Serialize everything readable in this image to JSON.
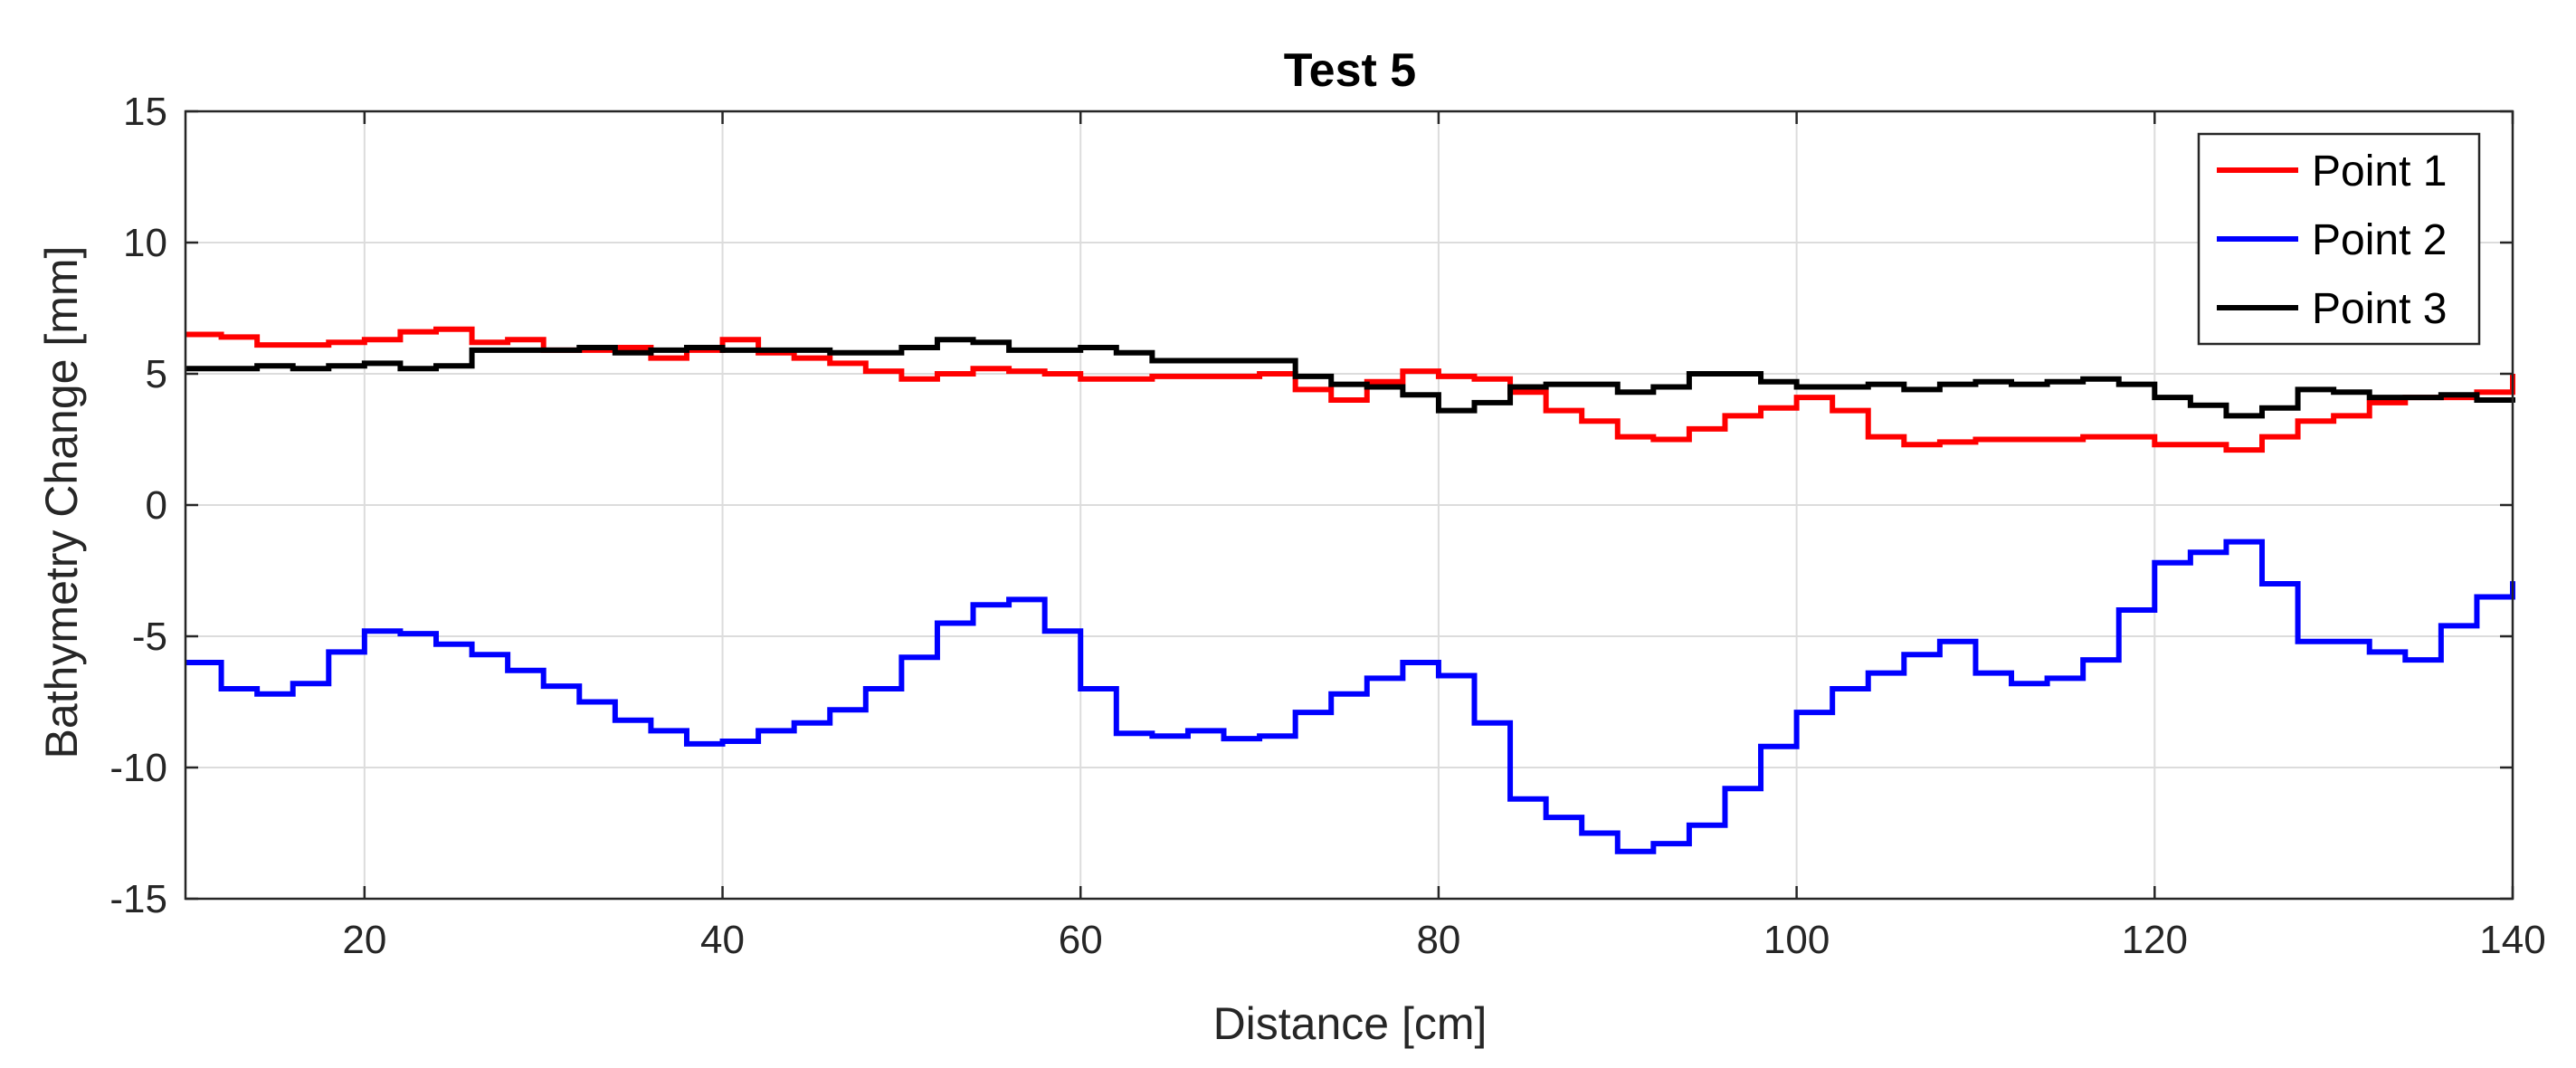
{
  "chart_data": {
    "type": "line",
    "title": "Test 5",
    "xlabel": "Distance [cm]",
    "ylabel": "Bathymetry Change [mm]",
    "xlim": [
      10,
      140
    ],
    "ylim": [
      -15,
      15
    ],
    "xticks": [
      20,
      40,
      60,
      80,
      100,
      120,
      140
    ],
    "yticks": [
      15,
      10,
      5,
      0,
      -5,
      -10,
      -15
    ],
    "grid": true,
    "legend_position": "top-right",
    "x": [
      10,
      12,
      14,
      16,
      18,
      20,
      22,
      24,
      26,
      28,
      30,
      32,
      34,
      36,
      38,
      40,
      42,
      44,
      46,
      48,
      50,
      52,
      54,
      56,
      58,
      60,
      62,
      64,
      66,
      68,
      70,
      72,
      74,
      76,
      78,
      80,
      82,
      84,
      86,
      88,
      90,
      92,
      94,
      96,
      98,
      100,
      102,
      104,
      106,
      108,
      110,
      112,
      114,
      116,
      118,
      120,
      122,
      124,
      126,
      128,
      130,
      132,
      134,
      136,
      138,
      140
    ],
    "series": [
      {
        "name": "Point 1",
        "color": "#ff0000",
        "values": [
          6.5,
          6.4,
          6.1,
          6.1,
          6.2,
          6.3,
          6.6,
          6.7,
          6.2,
          6.3,
          5.9,
          5.9,
          6.0,
          5.6,
          5.9,
          6.3,
          5.8,
          5.6,
          5.4,
          5.1,
          4.8,
          5.0,
          5.2,
          5.1,
          5.0,
          4.8,
          4.8,
          4.9,
          4.9,
          4.9,
          5.0,
          4.4,
          4.0,
          4.7,
          5.1,
          4.9,
          4.8,
          4.3,
          3.6,
          3.2,
          2.6,
          2.5,
          2.9,
          3.4,
          3.7,
          4.1,
          3.6,
          2.6,
          2.3,
          2.4,
          2.5,
          2.5,
          2.5,
          2.6,
          2.6,
          2.3,
          2.3,
          2.1,
          2.6,
          3.2,
          3.4,
          3.9,
          4.1,
          4.1,
          4.3,
          5.0
        ]
      },
      {
        "name": "Point 2",
        "color": "#0000ff",
        "values": [
          -6.0,
          -7.0,
          -7.2,
          -6.8,
          -5.6,
          -4.8,
          -4.9,
          -5.3,
          -5.7,
          -6.3,
          -6.9,
          -7.5,
          -8.2,
          -8.6,
          -9.1,
          -9.0,
          -8.6,
          -8.3,
          -7.8,
          -7.0,
          -5.8,
          -4.5,
          -3.8,
          -3.6,
          -4.8,
          -7.0,
          -8.7,
          -8.8,
          -8.6,
          -8.9,
          -8.8,
          -7.9,
          -7.2,
          -6.6,
          -6.0,
          -6.5,
          -8.3,
          -11.2,
          -11.9,
          -12.5,
          -13.2,
          -12.9,
          -12.2,
          -10.8,
          -9.2,
          -7.9,
          -7.0,
          -6.4,
          -5.7,
          -5.2,
          -6.4,
          -6.8,
          -6.6,
          -5.9,
          -4.0,
          -2.2,
          -1.8,
          -1.4,
          -3.0,
          -5.2,
          -5.2,
          -5.6,
          -5.9,
          -4.6,
          -3.5,
          -2.9
        ]
      },
      {
        "name": "Point 3",
        "color": "#000000",
        "values": [
          5.2,
          5.2,
          5.3,
          5.2,
          5.3,
          5.4,
          5.2,
          5.3,
          5.9,
          5.9,
          5.9,
          6.0,
          5.8,
          5.9,
          6.0,
          5.9,
          5.9,
          5.9,
          5.8,
          5.8,
          6.0,
          6.3,
          6.2,
          5.9,
          5.9,
          6.0,
          5.8,
          5.5,
          5.5,
          5.5,
          5.5,
          4.9,
          4.6,
          4.5,
          4.2,
          3.6,
          3.9,
          4.5,
          4.6,
          4.6,
          4.3,
          4.5,
          5.0,
          5.0,
          4.7,
          4.5,
          4.5,
          4.6,
          4.4,
          4.6,
          4.7,
          4.6,
          4.7,
          4.8,
          4.6,
          4.1,
          3.8,
          3.4,
          3.7,
          4.4,
          4.3,
          4.1,
          4.1,
          4.2,
          4.0,
          3.9
        ]
      }
    ]
  }
}
